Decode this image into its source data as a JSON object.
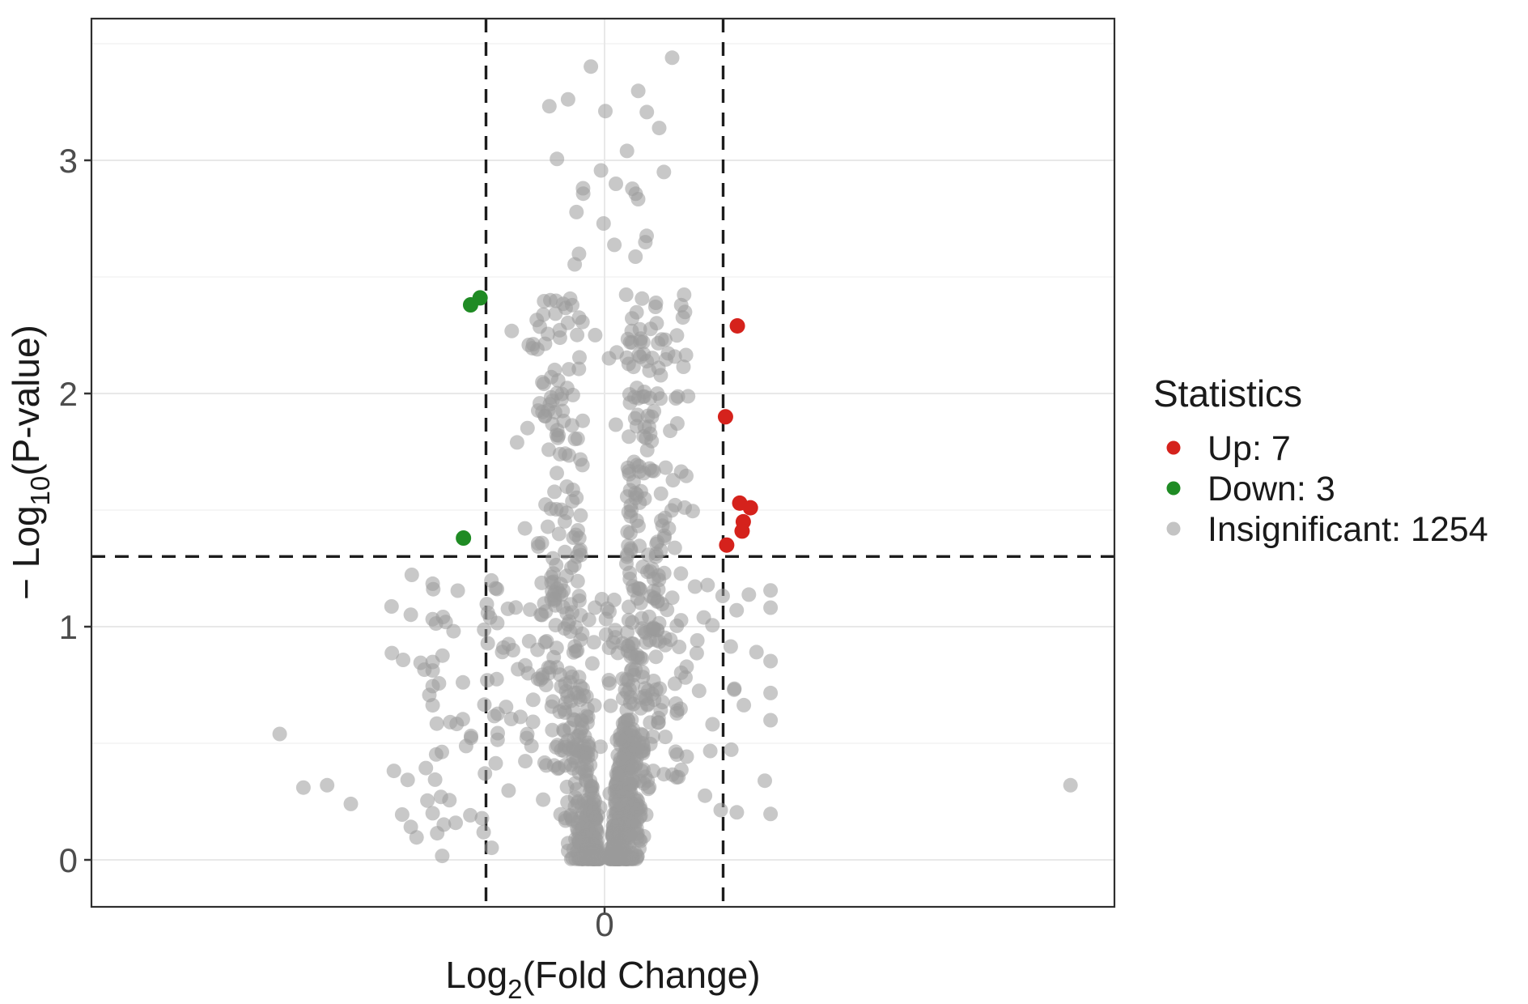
{
  "figure": {
    "background": "#ffffff"
  },
  "chart_data": {
    "type": "scatter",
    "subtype": "volcano-plot",
    "title": "",
    "xlabel": {
      "pre": "Log",
      "sub": "2",
      "post": "(Fold Change)"
    },
    "ylabel": {
      "pre": "− Log",
      "sub": "10",
      "post": "(P-value)"
    },
    "x_ticks": [
      "0"
    ],
    "x_tick_values": [
      0
    ],
    "y_ticks": [
      "0",
      "1",
      "2",
      "3"
    ],
    "y_tick_values": [
      0,
      1,
      2,
      3
    ],
    "xlim": [
      -4.33,
      4.3
    ],
    "ylim": [
      -0.2,
      3.61
    ],
    "grid": {
      "y_major": [
        0,
        1,
        2,
        3
      ],
      "y_minor": [
        0.5,
        1.5,
        2.5,
        3.5
      ],
      "x_major": [
        0
      ],
      "major_color": "#e8e8e8",
      "minor_color": "#f4f4f4"
    },
    "thresholds": {
      "log2fc": [
        -1,
        1
      ],
      "neg_log10_p": 1.301,
      "line_style": "dashed",
      "line_color": "#1c1c1c"
    },
    "legend": {
      "title": "Statistics",
      "position": "right",
      "entries": [
        {
          "label": "Up: 7",
          "color": "#D5221C",
          "count": 7
        },
        {
          "label": "Down: 3",
          "color": "#1F8B24",
          "count": 3
        },
        {
          "label": "Insignificant: 1254",
          "color": "#C4C4C4",
          "count": 1254
        }
      ]
    },
    "series": {
      "up": {
        "name": "Up",
        "color": "#D5221C",
        "count": 7,
        "points": [
          [
            1.12,
            2.29
          ],
          [
            1.02,
            1.9
          ],
          [
            1.14,
            1.53
          ],
          [
            1.23,
            1.51
          ],
          [
            1.17,
            1.45
          ],
          [
            1.16,
            1.41
          ],
          [
            1.03,
            1.35
          ]
        ]
      },
      "down": {
        "name": "Down",
        "color": "#1F8B24",
        "count": 3,
        "points": [
          [
            -1.05,
            2.41
          ],
          [
            -1.13,
            2.38
          ],
          [
            -1.19,
            1.38
          ]
        ]
      },
      "insignificant": {
        "name": "Insignificant",
        "color": "#9B9B9B",
        "opacity": 0.55,
        "count": 1254,
        "visible_outliers": [
          [
            -2.74,
            0.54
          ],
          [
            -2.54,
            0.31
          ],
          [
            -2.34,
            0.32
          ],
          [
            -2.14,
            0.24
          ],
          [
            -1.38,
            0.27
          ],
          [
            -1.34,
            1.02
          ],
          [
            3.93,
            0.32
          ],
          [
            0.57,
            3.44
          ],
          [
            0.5,
            2.95
          ]
        ],
        "generator": {
          "seed": 1337,
          "count": 1245,
          "weights": {
            "funnel": 0.78,
            "wide": 0.13,
            "high": 0.05,
            "left_tail": 0.04
          }
        }
      }
    }
  }
}
